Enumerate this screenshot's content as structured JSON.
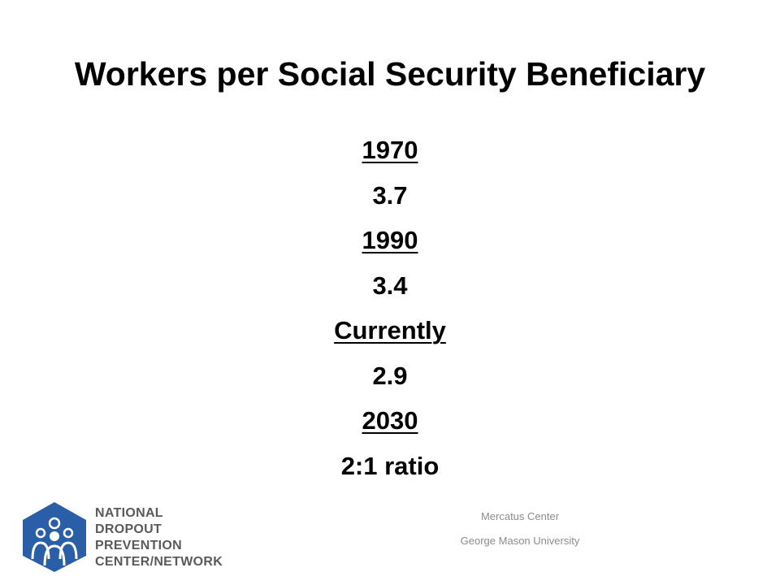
{
  "header": {
    "title": "Workers per Social Security Beneficiary"
  },
  "items": [
    {
      "label": "1970",
      "value": "3.7"
    },
    {
      "label": "1990",
      "value": "3.4"
    },
    {
      "label": "Currently",
      "value": "2.9"
    },
    {
      "label": "2030",
      "value": "2:1 ratio"
    }
  ],
  "footer": {
    "lines": [
      "Mercatus Center",
      "George Mason University"
    ]
  },
  "logo": {
    "lines": [
      "NATIONAL",
      "DROPOUT",
      "PREVENTION",
      "CENTER/NETWORK"
    ]
  }
}
